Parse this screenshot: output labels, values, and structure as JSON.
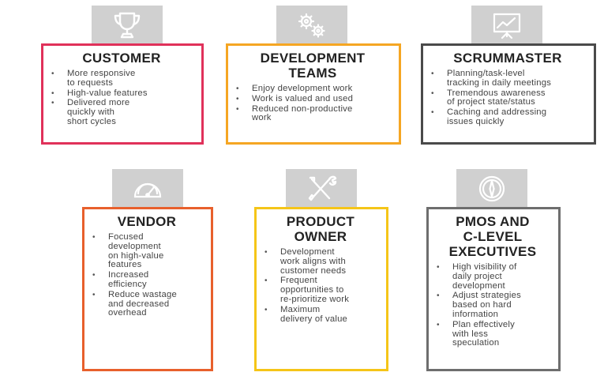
{
  "colors": {
    "customer": "#e0315a",
    "development_teams": "#f5a623",
    "scrummaster": "#4a4a4a",
    "vendor": "#e8602c",
    "product_owner": "#f5c518",
    "pmos": "#6e6e6e",
    "icon_tile": "#d0d0d0"
  },
  "cards": [
    {
      "icon": "trophy-icon",
      "title_lines": [
        "CUSTOMER"
      ],
      "bullets": [
        [
          "More responsive",
          "to requests"
        ],
        [
          "High-value features"
        ],
        [
          "Delivered more",
          "quickly with",
          "short cycles"
        ]
      ]
    },
    {
      "icon": "gears-icon",
      "title_lines": [
        "DEVELOPMENT",
        "TEAMS"
      ],
      "bullets": [
        [
          "Enjoy development work"
        ],
        [
          "Work is valued and used"
        ],
        [
          "Reduced non-productive",
          "work"
        ]
      ]
    },
    {
      "icon": "presentation-board-icon",
      "title_lines": [
        "SCRUMMASTER"
      ],
      "bullets": [
        [
          "Planning/task-level",
          "tracking in daily meetings"
        ],
        [
          "Tremendous awareness",
          "of project state/status"
        ],
        [
          "Caching and addressing",
          "issues quickly"
        ]
      ]
    },
    {
      "icon": "speedometer-icon",
      "title_lines": [
        "VENDOR"
      ],
      "bullets": [
        [
          "Focused",
          "development",
          "on high-value",
          "features"
        ],
        [
          "Increased",
          "efficiency"
        ],
        [
          "Reduce wastage",
          "and decreased",
          "overhead"
        ]
      ]
    },
    {
      "icon": "tools-icon",
      "title_lines": [
        "PRODUCT",
        "OWNER"
      ],
      "bullets": [
        [
          "Development",
          "work aligns with",
          "customer needs"
        ],
        [
          "Frequent",
          "opportunities to",
          "re-prioritize work"
        ],
        [
          "Maximum",
          "delivery of value"
        ]
      ]
    },
    {
      "icon": "compass-icon",
      "title_lines": [
        "PMOS AND",
        "C-LEVEL",
        "EXECUTIVES"
      ],
      "bullets": [
        [
          "High visibility of",
          "daily project",
          "development"
        ],
        [
          "Adjust strategies",
          "based on hard",
          "information"
        ],
        [
          "Plan effectively",
          "with less",
          "speculation"
        ]
      ]
    }
  ]
}
